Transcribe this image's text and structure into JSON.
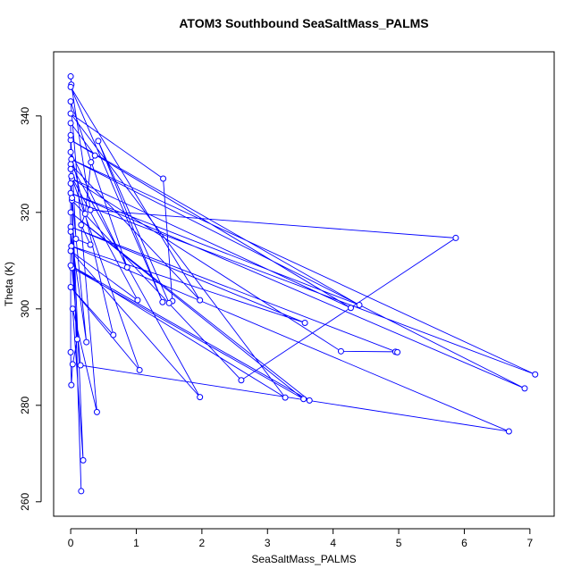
{
  "chart_data": {
    "type": "line",
    "title": "ATOM3 Southbound SeaSaltMass_PALMS",
    "x_label": "SeaSaltMass_PALMS",
    "y_label": "Theta (K)",
    "x": [
      0.0,
      0.01,
      0.3,
      5.87,
      2.6,
      0.02,
      7.08,
      0.01,
      6.92,
      0.0,
      4.4,
      0.0,
      4.27,
      0.02,
      4.12,
      4.95,
      4.98,
      0.0,
      3.57,
      0.01,
      6.68,
      0.15,
      0.02,
      3.55,
      0.0,
      3.64,
      0.0,
      3.27,
      0.0,
      1.41,
      1.55,
      1.5,
      0.42,
      1.4,
      0.0,
      1.97,
      0.0,
      1.97,
      0.0,
      1.02,
      0.01,
      1.05,
      0.0,
      0.65,
      0.0,
      0.86,
      0.0,
      0.4,
      0.03,
      0.19,
      0.0,
      0.16,
      0.02,
      0.24,
      0.0,
      0.1,
      0.03,
      0.01,
      0.0,
      0.0,
      0.37,
      0.31,
      0.22,
      0.16,
      0.3,
      0.08,
      0.0,
      0.0
    ],
    "series": [
      {
        "color": "#0000ff",
        "values": [
          348.2,
          346.5,
          320.5,
          314.7,
          285.2,
          322.5,
          286.4,
          331,
          283.5,
          324,
          300.8,
          335,
          300.2,
          327,
          291.2,
          291.1,
          291.0,
          317,
          297.1,
          313,
          274.6,
          288.3,
          308.5,
          281.3,
          320,
          281.0,
          309,
          281.6,
          340.5,
          327.0,
          301.6,
          301.2,
          334.8,
          301.4,
          346,
          301.8,
          330,
          281.7,
          312,
          301.8,
          327.5,
          287.3,
          304.5,
          294.6,
          332.5,
          308.6,
          343,
          278.6,
          300,
          268.6,
          329,
          262.2,
          323,
          293.1,
          316,
          293.7,
          288.5,
          284.2,
          291,
          338.5,
          331.8,
          330.4,
          319.7,
          317.4,
          313.3,
          314.5,
          336,
          326
        ]
      }
    ],
    "xlim": [
      -0.26,
      7.37
    ],
    "ylim": [
      257.0,
      353.3
    ],
    "xticks": [
      0,
      1,
      2,
      3,
      4,
      5,
      6,
      7
    ],
    "yticks": [
      260,
      280,
      300,
      320,
      340
    ]
  }
}
